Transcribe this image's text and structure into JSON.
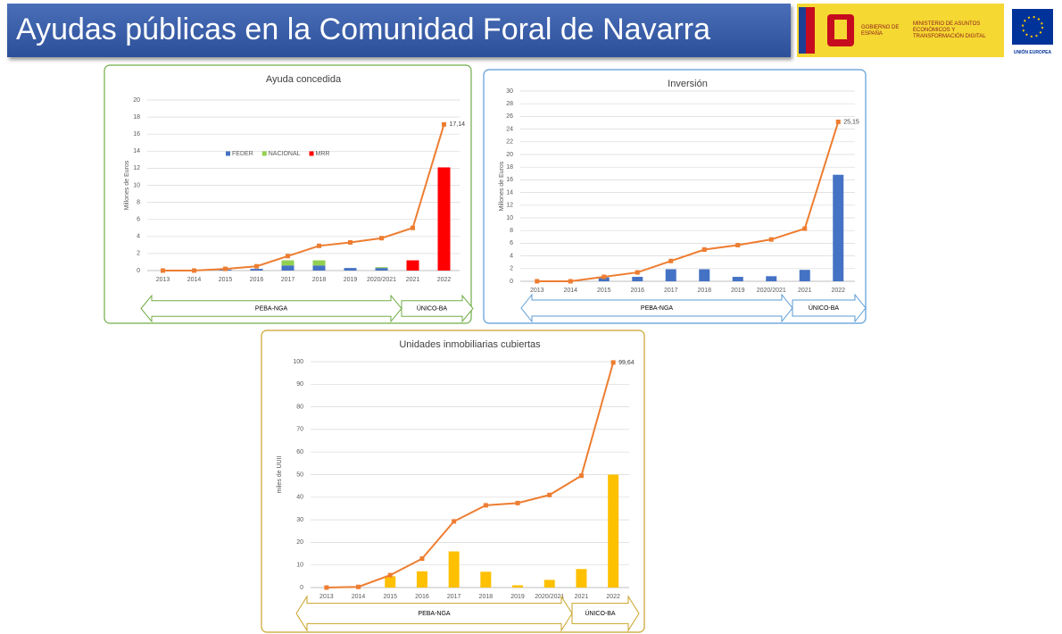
{
  "header": {
    "title": "Ayudas públicas en la Comunidad Foral de Navarra",
    "gov": "GOBIERNO DE ESPAÑA",
    "ministry": "MINISTERIO DE ASUNTOS ECONÓMICOS Y TRANSFORMACIÓN DIGITAL",
    "eu": "UNIÓN EUROPEA"
  },
  "chart_data": [
    {
      "type": "bar",
      "title": "Ayuda concedida",
      "y_label": "Millones de Euros",
      "stacked": true,
      "legend": "center",
      "grid": true,
      "categories": [
        "2013",
        "2014",
        "2015",
        "2016",
        "2017",
        "2018",
        "2019",
        "2020/2021",
        "2021",
        "2022"
      ],
      "ylim": [
        0,
        20
      ],
      "yticks": [
        0,
        2,
        4,
        6,
        8,
        10,
        12,
        14,
        16,
        18,
        20
      ],
      "series": [
        {
          "name": "FEDER",
          "color": "#4472c4",
          "values": [
            0,
            0,
            0.1,
            0.2,
            0.6,
            0.6,
            0.3,
            0.3,
            0,
            0
          ]
        },
        {
          "name": "NACIONAL",
          "color": "#92d050",
          "values": [
            0,
            0,
            0,
            0,
            0.6,
            0.6,
            0,
            0.1,
            0,
            0
          ]
        },
        {
          "name": "MRR",
          "color": "#ff0000",
          "values": [
            0,
            0,
            0,
            0,
            0,
            0,
            0,
            0,
            1.2,
            12.1
          ]
        },
        {
          "type": "line",
          "color": "#ed7d31",
          "values": [
            0,
            0,
            0.2,
            0.5,
            1.7,
            2.9,
            3.3,
            3.8,
            5.0,
            17.14
          ],
          "value_labels": [
            null,
            null,
            null,
            null,
            null,
            null,
            null,
            null,
            null,
            "17,14"
          ]
        }
      ],
      "phases": [
        "PEBA-NGA",
        "ÚNICO-BA"
      ]
    },
    {
      "type": "bar",
      "title": "Inversión",
      "y_label": "Millones de Euros",
      "grid": true,
      "categories": [
        "2013",
        "2014",
        "2015",
        "2016",
        "2017",
        "2018",
        "2019",
        "2020/2021",
        "2021",
        "2022"
      ],
      "ylim": [
        0,
        30
      ],
      "yticks": [
        0,
        2,
        4,
        6,
        8,
        10,
        12,
        14,
        16,
        18,
        20,
        22,
        24,
        26,
        28,
        30
      ],
      "series": [
        {
          "color": "#4472c4",
          "values": [
            0,
            0,
            0.6,
            0.7,
            1.9,
            1.9,
            0.7,
            0.8,
            1.8,
            16.8
          ]
        },
        {
          "type": "line",
          "color": "#ed7d31",
          "values": [
            0,
            0,
            0.7,
            1.4,
            3.2,
            5.0,
            5.7,
            6.6,
            8.3,
            25.15
          ],
          "value_labels": [
            null,
            null,
            null,
            null,
            null,
            null,
            null,
            null,
            null,
            "25,15"
          ]
        }
      ],
      "phases": [
        "PEBA-NGA",
        "ÚNICO-BA"
      ]
    },
    {
      "type": "bar",
      "title": "Unidades inmobiliarias cubiertas",
      "y_label": "miles de UUII",
      "grid": true,
      "categories": [
        "2013",
        "2014",
        "2015",
        "2016",
        "2017",
        "2018",
        "2019",
        "2020/2021",
        "2021",
        "2022"
      ],
      "ylim": [
        0,
        100
      ],
      "yticks": [
        0,
        10,
        20,
        30,
        40,
        50,
        60,
        70,
        80,
        90,
        100
      ],
      "series": [
        {
          "color": "#ffc000",
          "values": [
            0,
            0,
            5,
            7.2,
            16,
            7,
            1,
            3.4,
            8.2,
            50
          ]
        },
        {
          "type": "line",
          "color": "#ed7d31",
          "values": [
            0,
            0.3,
            5.5,
            12.8,
            29.3,
            36.4,
            37.4,
            41,
            49.5,
            99.64
          ],
          "value_labels": [
            null,
            null,
            null,
            null,
            null,
            null,
            null,
            null,
            null,
            "99,64"
          ]
        }
      ],
      "phases": [
        "PEBA-NGA",
        "ÚNICO-BA"
      ]
    }
  ]
}
